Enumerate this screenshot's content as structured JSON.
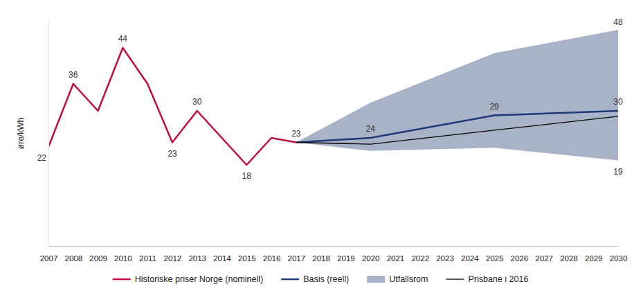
{
  "chart_data": {
    "type": "line",
    "y_label": "øre/kWh",
    "xlim": [
      2007,
      2030
    ],
    "xticks": [
      2007,
      2008,
      2009,
      2010,
      2011,
      2012,
      2013,
      2014,
      2015,
      2016,
      2017,
      2018,
      2019,
      2020,
      2021,
      2022,
      2023,
      2024,
      2025,
      2026,
      2027,
      2028,
      2029,
      2030
    ],
    "ylim": [
      0,
      50
    ],
    "tick_labels": "x",
    "grid": false,
    "legend": "bottom",
    "data_labels": true,
    "series": [
      {
        "name": "Historiske priser Norge (nominell)",
        "type": "line",
        "color": "#c00d3c",
        "x": [
          2007,
          2008,
          2009,
          2010,
          2011,
          2012,
          2013,
          2014,
          2015,
          2016,
          2017
        ],
        "values": [
          22,
          36,
          30,
          44,
          36,
          23,
          30,
          24,
          18,
          24,
          23
        ],
        "value_labels": [
          "22",
          "36",
          null,
          "44",
          null,
          "23",
          "30",
          null,
          "18",
          null,
          "23"
        ]
      },
      {
        "name": "Basis (reell)",
        "type": "line",
        "color": "#1f3877",
        "x": [
          2017,
          2020,
          2025,
          2030
        ],
        "values": [
          23,
          24,
          29,
          30
        ],
        "value_labels": [
          null,
          "24",
          "29",
          "30"
        ]
      },
      {
        "name": "Utfallsrom",
        "type": "area",
        "color": "#a9b3c7",
        "x": [
          2017,
          2020,
          2025,
          2030
        ],
        "lower": [
          23,
          21.1,
          21.8,
          19
        ],
        "upper": [
          23,
          31.8,
          42.8,
          48
        ],
        "lower_labels": [
          null,
          null,
          null,
          "19"
        ],
        "upper_labels": [
          null,
          null,
          null,
          "48"
        ]
      },
      {
        "name": "Prisbane i 2016",
        "type": "line",
        "color": "#000000",
        "x": [
          2017,
          2020,
          2025,
          2030
        ],
        "values": [
          23,
          22.6,
          25.7,
          28.8
        ]
      }
    ]
  }
}
